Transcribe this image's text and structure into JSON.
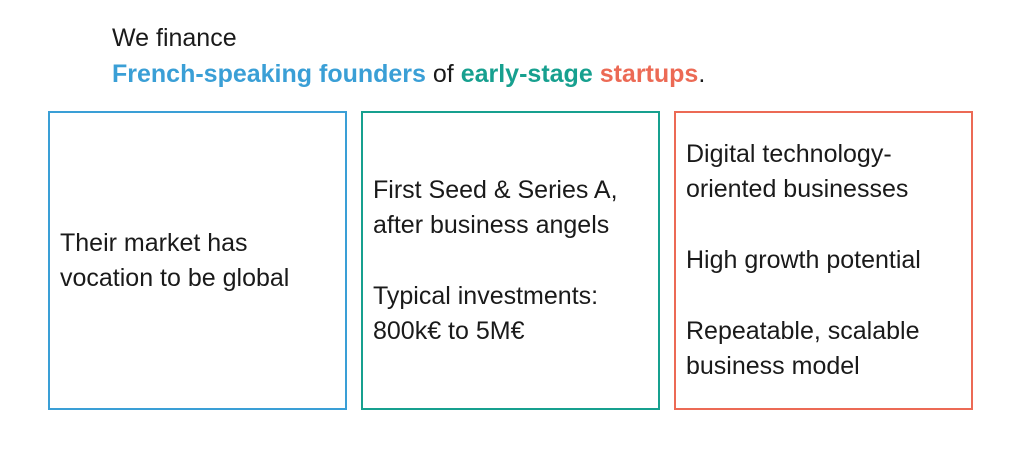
{
  "headline": {
    "line1": "We finance",
    "part_founders": "French-speaking founders",
    "part_of": " of ",
    "part_stage": "early-stage",
    "part_space": " ",
    "part_startups": "startups",
    "part_period": "."
  },
  "colors": {
    "blue": "#3a9fd6",
    "teal": "#17a08f",
    "coral": "#ec6a55"
  },
  "boxes": [
    {
      "paragraphs": [
        "Their market has vocation to be global"
      ]
    },
    {
      "paragraphs": [
        "First Seed & Series A, after business angels",
        "Typical investments: 800k€ to 5M€"
      ]
    },
    {
      "paragraphs": [
        "Digital technology-oriented businesses",
        "High growth potential",
        "Repeatable, scalable business model"
      ]
    }
  ]
}
